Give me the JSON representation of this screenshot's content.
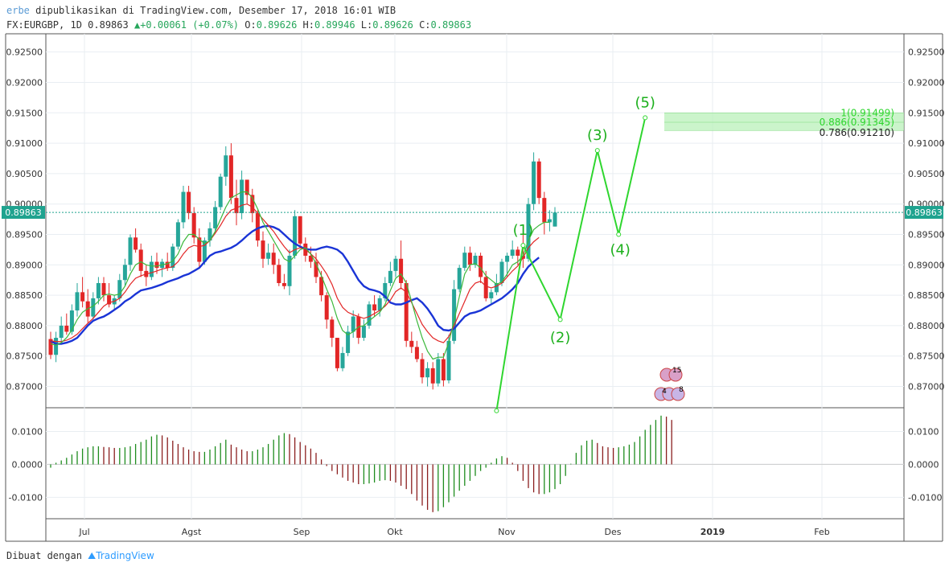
{
  "header": {
    "author": "erbe",
    "published_text": "dipublikasikan di TradingView.com, Desember 17, 2018 16:01 WIB",
    "symbol": "FX:EURGBP, 1D",
    "last": "0.89863",
    "change": "+0.00061 (+0.07%)",
    "o_label": "O:",
    "o_value": "0.89626",
    "h_label": "H:",
    "h_value": "0.89946",
    "l_label": "L:",
    "l_value": "0.89626",
    "c_label": "C:",
    "c_value": "0.89863"
  },
  "footer": {
    "made_with": "Dibuat dengan",
    "brand": "TradingView"
  },
  "colors": {
    "up": "#26a69a",
    "down": "#e22626",
    "grid": "#e9eef2",
    "ma_blue": "#1a34d6",
    "ma_red": "#e22626",
    "ma_green": "#3cb83c",
    "wave": "#2fd62f",
    "fib_band": "#b9f0b9"
  },
  "chart_data": {
    "type": "candlestick",
    "price_axis": {
      "min": 0.8665,
      "max": 0.928,
      "ticks": [
        "0.92500",
        "0.92000",
        "0.91500",
        "0.91000",
        "0.90500",
        "0.90000",
        "0.89500",
        "0.89000",
        "0.88500",
        "0.88000",
        "0.87500",
        "0.87000"
      ],
      "last_price_label": "0.89863"
    },
    "time_axis": {
      "labels": [
        "Jul",
        "Agst",
        "Sep",
        "Okt",
        "Nov",
        "Des",
        "2019",
        "Feb"
      ]
    },
    "candles": [
      [
        0.8778,
        0.879,
        0.8745,
        0.8752
      ],
      [
        0.8752,
        0.879,
        0.874,
        0.878
      ],
      [
        0.878,
        0.8815,
        0.877,
        0.88
      ],
      [
        0.88,
        0.882,
        0.8785,
        0.879
      ],
      [
        0.879,
        0.8835,
        0.8785,
        0.8825
      ],
      [
        0.8825,
        0.887,
        0.8815,
        0.8855
      ],
      [
        0.8855,
        0.888,
        0.883,
        0.884
      ],
      [
        0.884,
        0.886,
        0.8805,
        0.8815
      ],
      [
        0.8815,
        0.8855,
        0.881,
        0.8845
      ],
      [
        0.8845,
        0.888,
        0.8835,
        0.887
      ],
      [
        0.887,
        0.888,
        0.884,
        0.885
      ],
      [
        0.885,
        0.887,
        0.883,
        0.8835
      ],
      [
        0.8835,
        0.885,
        0.8825,
        0.8845
      ],
      [
        0.8845,
        0.8885,
        0.884,
        0.8875
      ],
      [
        0.8875,
        0.891,
        0.8865,
        0.89
      ],
      [
        0.89,
        0.895,
        0.889,
        0.8945
      ],
      [
        0.8945,
        0.896,
        0.892,
        0.8925
      ],
      [
        0.8925,
        0.8935,
        0.888,
        0.889
      ],
      [
        0.889,
        0.89,
        0.8865,
        0.888
      ],
      [
        0.888,
        0.8915,
        0.8875,
        0.8905
      ],
      [
        0.8905,
        0.892,
        0.8885,
        0.8895
      ],
      [
        0.8895,
        0.891,
        0.888,
        0.8905
      ],
      [
        0.8905,
        0.892,
        0.889,
        0.8895
      ],
      [
        0.8895,
        0.8935,
        0.889,
        0.893
      ],
      [
        0.893,
        0.8975,
        0.8925,
        0.897
      ],
      [
        0.897,
        0.903,
        0.896,
        0.902
      ],
      [
        0.902,
        0.903,
        0.8975,
        0.8985
      ],
      [
        0.8985,
        0.8995,
        0.8935,
        0.8945
      ],
      [
        0.8945,
        0.896,
        0.8895,
        0.8905
      ],
      [
        0.8905,
        0.8945,
        0.89,
        0.894
      ],
      [
        0.894,
        0.897,
        0.893,
        0.896
      ],
      [
        0.896,
        0.9005,
        0.8955,
        0.8995
      ],
      [
        0.8995,
        0.905,
        0.899,
        0.9045
      ],
      [
        0.9045,
        0.9095,
        0.903,
        0.908
      ],
      [
        0.908,
        0.91,
        0.9,
        0.901
      ],
      [
        0.901,
        0.904,
        0.8965,
        0.8985
      ],
      [
        0.8985,
        0.9055,
        0.8975,
        0.904
      ],
      [
        0.904,
        0.904,
        0.9,
        0.9015
      ],
      [
        0.9015,
        0.9025,
        0.897,
        0.8985
      ],
      [
        0.8985,
        0.899,
        0.893,
        0.894
      ],
      [
        0.894,
        0.8955,
        0.8895,
        0.891
      ],
      [
        0.891,
        0.8935,
        0.89,
        0.892
      ],
      [
        0.892,
        0.8935,
        0.8885,
        0.89
      ],
      [
        0.89,
        0.891,
        0.8865,
        0.887
      ],
      [
        0.887,
        0.8885,
        0.886,
        0.8865
      ],
      [
        0.8865,
        0.8925,
        0.885,
        0.8915
      ],
      [
        0.8915,
        0.899,
        0.891,
        0.898
      ],
      [
        0.898,
        0.898,
        0.893,
        0.8935
      ],
      [
        0.8935,
        0.8945,
        0.8905,
        0.8915
      ],
      [
        0.8915,
        0.893,
        0.8895,
        0.8905
      ],
      [
        0.8905,
        0.892,
        0.887,
        0.888
      ],
      [
        0.888,
        0.889,
        0.884,
        0.885
      ],
      [
        0.885,
        0.8855,
        0.8795,
        0.881
      ],
      [
        0.881,
        0.8815,
        0.8765,
        0.878
      ],
      [
        0.878,
        0.878,
        0.8725,
        0.873
      ],
      [
        0.873,
        0.8765,
        0.8725,
        0.8755
      ],
      [
        0.8755,
        0.88,
        0.875,
        0.879
      ],
      [
        0.879,
        0.8825,
        0.878,
        0.8815
      ],
      [
        0.8815,
        0.882,
        0.877,
        0.878
      ],
      [
        0.878,
        0.881,
        0.8775,
        0.88
      ],
      [
        0.88,
        0.884,
        0.8795,
        0.8835
      ],
      [
        0.8835,
        0.885,
        0.8815,
        0.8825
      ],
      [
        0.8825,
        0.885,
        0.8815,
        0.8845
      ],
      [
        0.8845,
        0.888,
        0.884,
        0.887
      ],
      [
        0.887,
        0.8905,
        0.8865,
        0.889
      ],
      [
        0.889,
        0.8915,
        0.888,
        0.891
      ],
      [
        0.891,
        0.894,
        0.886,
        0.887
      ],
      [
        0.887,
        0.8875,
        0.8765,
        0.8775
      ],
      [
        0.8775,
        0.879,
        0.8755,
        0.8765
      ],
      [
        0.8765,
        0.8775,
        0.874,
        0.8745
      ],
      [
        0.8745,
        0.8755,
        0.8705,
        0.8715
      ],
      [
        0.8715,
        0.874,
        0.87,
        0.873
      ],
      [
        0.873,
        0.874,
        0.8695,
        0.8705
      ],
      [
        0.8705,
        0.8755,
        0.87,
        0.8745
      ],
      [
        0.8745,
        0.8755,
        0.87,
        0.871
      ],
      [
        0.871,
        0.8785,
        0.8705,
        0.8775
      ],
      [
        0.8775,
        0.8875,
        0.877,
        0.886
      ],
      [
        0.886,
        0.89,
        0.8855,
        0.8895
      ],
      [
        0.8895,
        0.893,
        0.889,
        0.892
      ],
      [
        0.892,
        0.893,
        0.889,
        0.89
      ],
      [
        0.89,
        0.892,
        0.8895,
        0.8915
      ],
      [
        0.8915,
        0.892,
        0.887,
        0.888
      ],
      [
        0.888,
        0.889,
        0.884,
        0.8845
      ],
      [
        0.8845,
        0.886,
        0.8835,
        0.8855
      ],
      [
        0.8855,
        0.8885,
        0.885,
        0.887
      ],
      [
        0.887,
        0.891,
        0.8865,
        0.8905
      ],
      [
        0.8905,
        0.892,
        0.888,
        0.8915
      ],
      [
        0.8915,
        0.894,
        0.891,
        0.8925
      ],
      [
        0.8925,
        0.893,
        0.89,
        0.8915
      ],
      [
        0.8915,
        0.895,
        0.8895,
        0.891
      ],
      [
        0.891,
        0.901,
        0.8905,
        0.9
      ],
      [
        0.9,
        0.9085,
        0.899,
        0.907
      ],
      [
        0.907,
        0.9075,
        0.9,
        0.901
      ],
      [
        0.901,
        0.902,
        0.895,
        0.897
      ],
      [
        0.897,
        0.899,
        0.8955,
        0.8975
      ],
      [
        0.8963,
        0.8995,
        0.8963,
        0.8986
      ]
    ],
    "moving_averages": [
      {
        "name": "MA-slow",
        "color": "blue",
        "start": 0,
        "values": [
          0.8775,
          0.877,
          0.877,
          0.8772,
          0.8775,
          0.878,
          0.879,
          0.88,
          0.8808,
          0.8812,
          0.8815,
          0.882,
          0.8826,
          0.8832,
          0.884,
          0.8845,
          0.8852,
          0.8858,
          0.886,
          0.8862,
          0.8865,
          0.8868,
          0.8872,
          0.8875,
          0.8878,
          0.8882,
          0.8885,
          0.889,
          0.8895,
          0.8905,
          0.8915,
          0.892,
          0.8922,
          0.8925,
          0.8928,
          0.8933,
          0.894,
          0.8948,
          0.8955,
          0.896,
          0.8963,
          0.8964,
          0.8962,
          0.8958,
          0.895,
          0.8942,
          0.8935,
          0.893,
          0.8926,
          0.8925,
          0.8925,
          0.8928,
          0.893,
          0.8928,
          0.8925,
          0.8918,
          0.8905,
          0.889,
          0.8875,
          0.8865,
          0.886,
          0.8858,
          0.8855,
          0.8848,
          0.8838,
          0.8835,
          0.8835,
          0.8838,
          0.8842,
          0.8845,
          0.8838,
          0.8828,
          0.8815,
          0.88,
          0.8793,
          0.8792,
          0.8795,
          0.8805,
          0.8815,
          0.882,
          0.8822,
          0.8825,
          0.883,
          0.8835,
          0.884,
          0.8845,
          0.8852,
          0.886,
          0.887,
          0.8885,
          0.8897,
          0.8905,
          0.8912
        ]
      },
      {
        "name": "MA-mid",
        "color": "red",
        "start": 0,
        "values": [
          0.8775,
          0.8774,
          0.8774,
          0.8776,
          0.878,
          0.8786,
          0.8795,
          0.8804,
          0.8812,
          0.8822,
          0.8832,
          0.8838,
          0.884,
          0.8845,
          0.8855,
          0.8868,
          0.8878,
          0.8882,
          0.8885,
          0.8887,
          0.889,
          0.8893,
          0.8895,
          0.8897,
          0.8905,
          0.8918,
          0.8928,
          0.8932,
          0.893,
          0.8932,
          0.894,
          0.8952,
          0.8965,
          0.898,
          0.899,
          0.8993,
          0.8998,
          0.9,
          0.8995,
          0.8985,
          0.8975,
          0.8965,
          0.8955,
          0.8942,
          0.893,
          0.892,
          0.8925,
          0.8928,
          0.8925,
          0.8918,
          0.891,
          0.8898,
          0.8885,
          0.8868,
          0.8845,
          0.883,
          0.8822,
          0.8818,
          0.8815,
          0.8812,
          0.8815,
          0.882,
          0.8825,
          0.8832,
          0.8842,
          0.8856,
          0.8862,
          0.8855,
          0.8838,
          0.882,
          0.8802,
          0.879,
          0.878,
          0.8775,
          0.8772,
          0.8782,
          0.88,
          0.882,
          0.884,
          0.886,
          0.887,
          0.8873,
          0.8865,
          0.8862,
          0.8865,
          0.887,
          0.888,
          0.889,
          0.8898,
          0.8912,
          0.8928,
          0.8938,
          0.8945
        ]
      },
      {
        "name": "MA-fast",
        "color": "green",
        "start": 0,
        "values": [
          0.877,
          0.8768,
          0.8772,
          0.878,
          0.8793,
          0.881,
          0.8822,
          0.8828,
          0.8832,
          0.884,
          0.885,
          0.8852,
          0.885,
          0.8852,
          0.8865,
          0.8885,
          0.89,
          0.8905,
          0.89,
          0.8898,
          0.8898,
          0.89,
          0.8902,
          0.8906,
          0.8918,
          0.8938,
          0.895,
          0.895,
          0.8942,
          0.8935,
          0.894,
          0.8955,
          0.8975,
          0.8995,
          0.901,
          0.9015,
          0.902,
          0.902,
          0.901,
          0.8992,
          0.897,
          0.8955,
          0.894,
          0.8925,
          0.891,
          0.8905,
          0.8915,
          0.8925,
          0.8928,
          0.8918,
          0.8902,
          0.8882,
          0.886,
          0.884,
          0.8812,
          0.8792,
          0.8785,
          0.879,
          0.8798,
          0.88,
          0.8808,
          0.8815,
          0.8822,
          0.8835,
          0.8858,
          0.8878,
          0.8885,
          0.887,
          0.884,
          0.8808,
          0.878,
          0.8758,
          0.8745,
          0.8748,
          0.8748,
          0.8772,
          0.8808,
          0.8848,
          0.8885,
          0.89,
          0.8902,
          0.8895,
          0.8882,
          0.8875,
          0.8868,
          0.8872,
          0.8885,
          0.89,
          0.8905,
          0.8915,
          0.894,
          0.8958,
          0.8965,
          0.897,
          0.897
        ]
      }
    ],
    "wave_labels": [
      "(1)",
      "(2)",
      "(3)",
      "(4)",
      "(5)"
    ],
    "wave_points": [
      [
        84,
        0.866
      ],
      [
        89,
        0.8932
      ],
      [
        96,
        0.881
      ],
      [
        103,
        0.9088
      ],
      [
        107,
        0.895
      ],
      [
        112,
        0.9142
      ]
    ],
    "fib_levels": [
      {
        "label": "1(0.91499)",
        "value": 0.91499
      },
      {
        "label": "0.886(0.91345)",
        "value": 0.91345
      },
      {
        "label": "0.786(0.91210)",
        "value": 0.9121
      }
    ],
    "events": {
      "top_label": "15",
      "bottom_left": "4",
      "bottom_right": "8"
    },
    "oscillator": {
      "min": -0.0165,
      "max": 0.0172,
      "ticks": [
        "0.0100",
        "0.0000",
        "-0.0100"
      ],
      "values": [
        -0.001,
        0.0005,
        0.0012,
        0.002,
        0.003,
        0.004,
        0.0048,
        0.0052,
        0.0055,
        0.0055,
        0.0053,
        0.0052,
        0.005,
        0.005,
        0.0052,
        0.0055,
        0.0062,
        0.0068,
        0.0075,
        0.0085,
        0.009,
        0.0088,
        0.0082,
        0.0072,
        0.0062,
        0.0052,
        0.0045,
        0.004,
        0.0038,
        0.0038,
        0.0045,
        0.0055,
        0.0065,
        0.0075,
        0.006,
        0.0052,
        0.0045,
        0.004,
        0.004,
        0.0045,
        0.0052,
        0.0062,
        0.0075,
        0.0088,
        0.0095,
        0.0092,
        0.0082,
        0.0068,
        0.0058,
        0.0048,
        0.0035,
        0.0015,
        -0.0005,
        -0.002,
        -0.003,
        -0.004,
        -0.005,
        -0.0055,
        -0.006,
        -0.006,
        -0.0058,
        -0.0055,
        -0.005,
        -0.0048,
        -0.005,
        -0.0055,
        -0.0065,
        -0.0075,
        -0.009,
        -0.011,
        -0.0125,
        -0.0138,
        -0.0145,
        -0.0142,
        -0.013,
        -0.0115,
        -0.0098,
        -0.008,
        -0.0065,
        -0.005,
        -0.0035,
        -0.002,
        -0.001,
        0.0005,
        0.0018,
        0.0025,
        0.002,
        0.0005,
        -0.002,
        -0.005,
        -0.0072,
        -0.0085,
        -0.009,
        -0.009,
        -0.0085,
        -0.0075,
        -0.006,
        -0.0035,
        0.0002,
        0.0035,
        0.0058,
        0.0072,
        0.0075,
        0.0065,
        0.0055,
        0.0052,
        0.005,
        0.0052,
        0.0055,
        0.006,
        0.0068,
        0.0085,
        0.0105,
        0.012,
        0.0135,
        0.0148,
        0.0145,
        0.0135
      ]
    }
  }
}
